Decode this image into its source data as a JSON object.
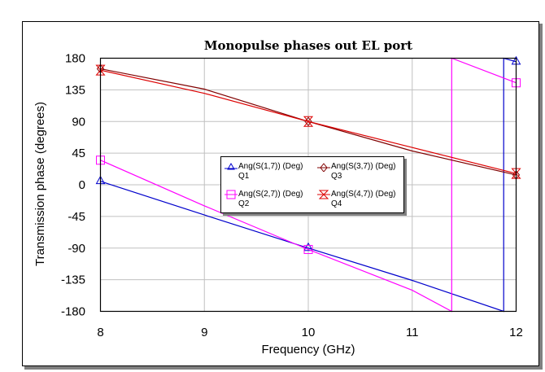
{
  "chart_data": {
    "type": "line",
    "title": "Monopulse phases out EL port",
    "xlabel": "Frequency (GHz)",
    "ylabel": "Transmission phase (degrees)",
    "xlim": [
      8,
      12
    ],
    "ylim": [
      -180,
      180
    ],
    "xticks": [
      "8",
      "9",
      "10",
      "11",
      "12"
    ],
    "yticks": [
      "180",
      "135",
      "90",
      "45",
      "0",
      "-45",
      "-90",
      "-135",
      "-180"
    ],
    "grid": true,
    "legend_position": "center-inside",
    "series": [
      {
        "name": "Ang(S(1,7)) (Deg)",
        "label": "Q1",
        "color": "#0000cc",
        "marker": "triangle",
        "x": [
          8,
          9,
          10,
          11,
          11.88,
          11.88,
          12
        ],
        "y": [
          5,
          -43,
          -90,
          -136,
          -180,
          180,
          175
        ]
      },
      {
        "name": "Ang(S(2,7)) (Deg)",
        "label": "Q2",
        "color": "#ff00ff",
        "marker": "square",
        "x": [
          8,
          9,
          10,
          11,
          11.38,
          11.38,
          12
        ],
        "y": [
          35,
          -30,
          -92,
          -150,
          -180,
          180,
          145
        ]
      },
      {
        "name": "Ang(S(3,7)) (Deg)",
        "label": "Q3",
        "color": "#800000",
        "marker": "circle",
        "x": [
          8,
          9,
          10,
          11,
          12
        ],
        "y": [
          165,
          136,
          90,
          48,
          14
        ]
      },
      {
        "name": "Ang(S(4,7)) (Deg)",
        "label": "Q4",
        "color": "#dd0000",
        "marker": "bowtie",
        "x": [
          8,
          9,
          10,
          11,
          12
        ],
        "y": [
          163,
          130,
          90,
          53,
          16
        ]
      }
    ]
  },
  "legend": {
    "items": [
      {
        "name": "Ang(S(1,7)) (Deg)",
        "sub": "Q1"
      },
      {
        "name": "Ang(S(3,7)) (Deg)",
        "sub": "Q3"
      },
      {
        "name": "Ang(S(2,7)) (Deg)",
        "sub": "Q2"
      },
      {
        "name": "Ang(S(4,7)) (Deg)",
        "sub": "Q4"
      }
    ]
  }
}
